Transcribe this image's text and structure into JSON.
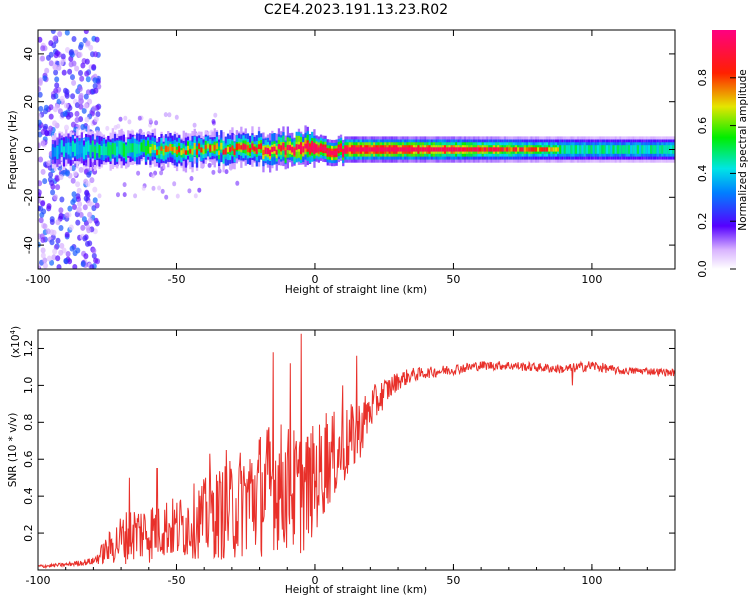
{
  "title": "C2E4.2023.191.13.23.R02",
  "colors": {
    "snr_line": "#e8302a",
    "axes": "#000000"
  },
  "chart_data": [
    {
      "type": "heatmap",
      "xlabel": "Height of straight line (km)",
      "ylabel": "Frequency (Hz)",
      "xlim": [
        -100,
        130
      ],
      "ylim": [
        -50,
        50
      ],
      "x_ticks": [
        "-100",
        "-50",
        "0",
        "50",
        "100"
      ],
      "y_ticks": [
        "-40",
        "-20",
        "0",
        "20",
        "40"
      ],
      "colorbar": {
        "label": "Normalized spectral amplitude",
        "range": [
          0,
          1
        ],
        "ticks": [
          "0.0",
          "0.2",
          "0.4",
          "0.6",
          "0.8"
        ],
        "colormap": "rainbow (violet→blue→cyan→green→yellow→red→magenta)"
      },
      "band": {
        "center_hz": 0,
        "description": "narrow energy band near 0 Hz; broad noisy scatter for heights below -80 km",
        "amplitude_by_height": [
          {
            "x": -95,
            "amp": 0.35
          },
          {
            "x": -80,
            "amp": 0.45
          },
          {
            "x": -60,
            "amp": 0.5
          },
          {
            "x": -40,
            "amp": 0.5
          },
          {
            "x": -20,
            "amp": 0.6
          },
          {
            "x": 0,
            "amp": 0.85
          },
          {
            "x": 20,
            "amp": 0.8
          },
          {
            "x": 50,
            "amp": 0.7
          },
          {
            "x": 75,
            "amp": 0.55
          },
          {
            "x": 100,
            "amp": 0.45
          },
          {
            "x": 130,
            "amp": 0.45
          }
        ]
      }
    },
    {
      "type": "line",
      "xlabel": "Height of straight line (km)",
      "ylabel": "SNR (10 * v/v)",
      "y_multiplier": "(x10",
      "y_multiplier_exp": "4",
      "y_multiplier_close": ")",
      "xlim": [
        -100,
        130
      ],
      "ylim": [
        0,
        1.3
      ],
      "x_ticks": [
        "-100",
        "-50",
        "0",
        "50",
        "100"
      ],
      "y_ticks": [
        "0.2",
        "0.4",
        "0.6",
        "0.8",
        "1.0",
        "1.2"
      ],
      "series": [
        {
          "x": [
            -100,
            -90,
            -80,
            -75,
            -70,
            -65,
            -60,
            -55,
            -50,
            -45,
            -40,
            -35,
            -30,
            -25,
            -20,
            -15,
            -10,
            -5,
            0,
            5,
            10,
            15,
            20,
            25,
            30,
            35,
            40,
            50,
            60,
            70,
            80,
            90,
            100,
            110,
            120,
            130
          ],
          "y": [
            0.02,
            0.03,
            0.05,
            0.12,
            0.18,
            0.22,
            0.22,
            0.25,
            0.24,
            0.28,
            0.3,
            0.33,
            0.35,
            0.42,
            0.45,
            0.5,
            0.48,
            0.45,
            0.52,
            0.62,
            0.68,
            0.75,
            0.88,
            0.97,
            1.03,
            1.06,
            1.07,
            1.09,
            1.11,
            1.11,
            1.1,
            1.09,
            1.11,
            1.08,
            1.08,
            1.07
          ],
          "noise": [
            0.01,
            0.01,
            0.02,
            0.08,
            0.14,
            0.16,
            0.17,
            0.17,
            0.17,
            0.2,
            0.22,
            0.25,
            0.28,
            0.32,
            0.35,
            0.36,
            0.35,
            0.34,
            0.3,
            0.25,
            0.22,
            0.18,
            0.12,
            0.08,
            0.05,
            0.04,
            0.03,
            0.03,
            0.025,
            0.025,
            0.025,
            0.025,
            0.03,
            0.02,
            0.02,
            0.02
          ],
          "peaks": [
            {
              "x": -67,
              "y": 0.5
            },
            {
              "x": -57,
              "y": 0.55
            },
            {
              "x": -38,
              "y": 0.63
            },
            {
              "x": -32,
              "y": 0.65
            },
            {
              "x": -15,
              "y": 1.18
            },
            {
              "x": -9,
              "y": 1.12
            },
            {
              "x": -5,
              "y": 1.28
            },
            {
              "x": 4,
              "y": 0.85
            },
            {
              "x": 10,
              "y": 1.0
            },
            {
              "x": 15,
              "y": 1.16
            },
            {
              "x": 93,
              "y": 1.0
            }
          ]
        }
      ]
    }
  ]
}
